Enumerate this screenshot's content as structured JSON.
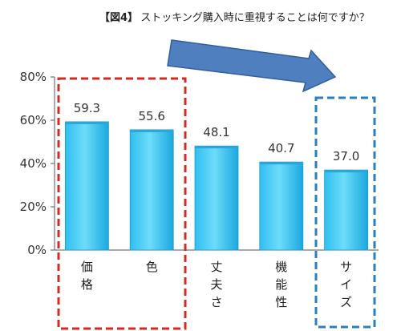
{
  "header": {
    "figure_label": "【図4】",
    "question": "ストッキング購入時に重視することは何ですか？"
  },
  "chart_data": {
    "type": "bar",
    "title": "ストッキング購入時に重視することは何ですか？",
    "categories": [
      "価格",
      "色",
      "丈夫さ",
      "機能性",
      "サイズ"
    ],
    "values": [
      59.3,
      55.6,
      48.1,
      40.7,
      37.0
    ],
    "value_labels": [
      "59.3",
      "55.6",
      "48.1",
      "40.7",
      "37.0"
    ],
    "ylim": [
      0,
      80
    ],
    "yticks": [
      0,
      20,
      40,
      60,
      80
    ],
    "ytick_labels": [
      "0%",
      "20%",
      "40%",
      "60%",
      "80%"
    ],
    "grid": false,
    "colors": {
      "bar_top": "#55d4f8",
      "bar_bottom": "#16b0e6",
      "red_box": "#d42a26",
      "blue_box": "#2a7fbf",
      "arrow_fill": "#4f7fbe",
      "arrow_stroke": "#2f5f9c"
    }
  }
}
